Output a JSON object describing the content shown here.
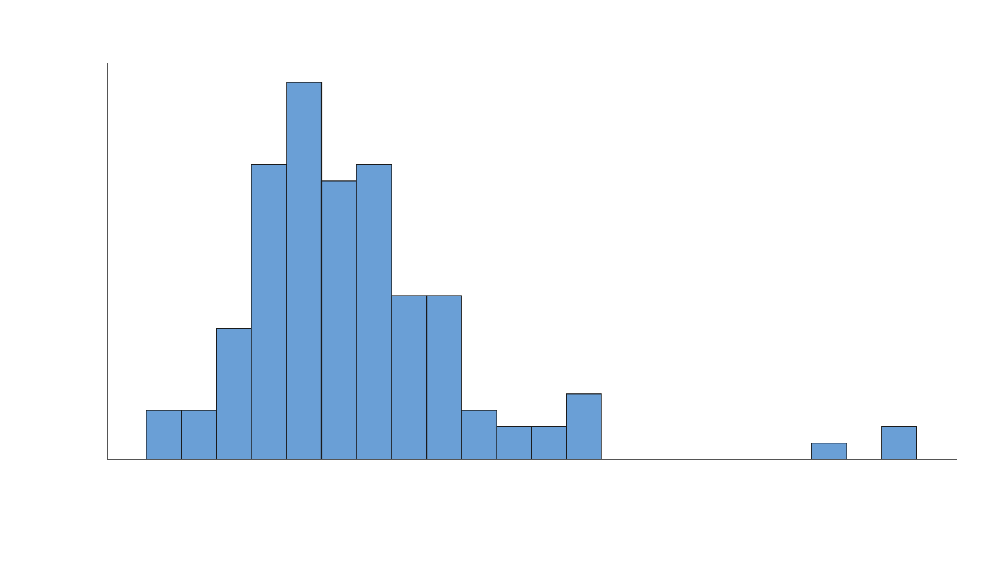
{
  "chart_data": {
    "type": "bar",
    "subtype": "histogram",
    "title": "",
    "xlabel": "",
    "ylabel": "",
    "x_ticks_visible": false,
    "y_ticks_visible": false,
    "grid": false,
    "legend": "none",
    "bar_color": "#6a9fd6",
    "edge_color": "#1a1a1a",
    "bin_count": 23,
    "counts": [
      3,
      3,
      8,
      18,
      23,
      17,
      18,
      10,
      10,
      3,
      2,
      2,
      4,
      0,
      0,
      0,
      0,
      0,
      0,
      1,
      0,
      2,
      0
    ],
    "ylim": [
      0,
      24
    ]
  }
}
